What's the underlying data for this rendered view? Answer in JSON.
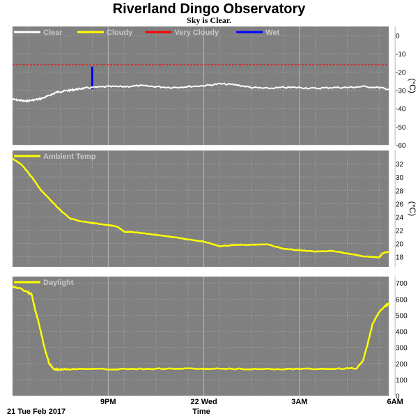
{
  "header": {
    "title": "Riverland Dingo Observatory",
    "subtitle": "Sky is Clear."
  },
  "x_axis": {
    "date_label": "21 Tue Feb 2017",
    "title": "Time",
    "ticks": [
      "9PM",
      "22 Wed",
      "3AM",
      "6AM"
    ]
  },
  "colors": {
    "panel_bg": "#808080",
    "grid": "#a8a8a8",
    "clear": "#ffffff",
    "cloudy": "#ffff00",
    "very_cloudy": "#ff0000",
    "wet": "#0000ff",
    "ambient": "#ffff00",
    "daylight": "#ffff00"
  },
  "chart_data": [
    {
      "type": "line",
      "id": "sky",
      "unit": "(°C)",
      "ylim": [
        -60,
        5
      ],
      "yticks": [
        0,
        -10,
        -20,
        -30,
        -40,
        -50,
        -60
      ],
      "legend": [
        "Clear",
        "Cloudy",
        "Very Cloudy",
        "Wet"
      ],
      "thresholds": {
        "very_cloudy": -16
      },
      "x": [
        0,
        0.2,
        0.4,
        0.6,
        0.8,
        1.0,
        1.2,
        1.4,
        1.6,
        1.8,
        2.0,
        2.2,
        2.5,
        3.0,
        3.5,
        4.0,
        4.5,
        5.0,
        5.5,
        6.0,
        6.5,
        7.0,
        7.5,
        8.0,
        8.5,
        9.0,
        9.5,
        10.0,
        10.5,
        11.0,
        11.5,
        11.8
      ],
      "series": [
        {
          "name": "Clear",
          "values": [
            -35,
            -35.5,
            -36,
            -35.5,
            -35,
            -34,
            -32.5,
            -31,
            -30.5,
            -30,
            -29.5,
            -29,
            -28.5,
            -28,
            -28,
            -27.5,
            -28,
            -28.5,
            -28,
            -27.5,
            -26.5,
            -27,
            -28.5,
            -29,
            -28.5,
            -28.5,
            -29,
            -28.5,
            -28.5,
            -28,
            -28.5,
            -29.5
          ]
        }
      ],
      "wet_events": [
        {
          "x": 2.5,
          "from": -29.5,
          "to": -17
        }
      ]
    },
    {
      "type": "line",
      "id": "ambient",
      "unit": "(°C)",
      "ylim": [
        16.5,
        34
      ],
      "yticks": [
        18,
        20,
        22,
        24,
        26,
        28,
        30,
        32
      ],
      "legend": [
        "Ambient Temp"
      ],
      "x": [
        0,
        0.3,
        0.6,
        0.9,
        1.2,
        1.5,
        1.8,
        2.1,
        2.5,
        3.0,
        3.3,
        3.5,
        4.0,
        4.5,
        5.0,
        5.5,
        6.0,
        6.5,
        7.0,
        7.5,
        8.0,
        8.5,
        9.0,
        9.5,
        10.0,
        10.5,
        11.0,
        11.5,
        11.8
      ],
      "series": [
        {
          "name": "Ambient Temp",
          "values": [
            32.8,
            31.8,
            30,
            28,
            26.5,
            25,
            23.8,
            23.4,
            23.1,
            22.8,
            22.5,
            21.8,
            21.6,
            21.3,
            21.0,
            20.6,
            20.3,
            19.6,
            19.8,
            19.8,
            19.9,
            19.2,
            19.0,
            18.8,
            18.9,
            18.5,
            18.1,
            17.9,
            18.1
          ],
          "values_tail": [
            18.5,
            18.8
          ]
        }
      ]
    },
    {
      "type": "line",
      "id": "daylight",
      "unit": "",
      "ylim": [
        0,
        740
      ],
      "yticks": [
        0,
        100,
        200,
        300,
        400,
        500,
        600,
        700
      ],
      "legend": [
        "Daylight"
      ],
      "x": [
        0,
        0.25,
        0.5,
        0.6,
        0.7,
        0.8,
        1.0,
        1.15,
        1.3,
        1.45,
        1.6,
        2.0,
        3.0,
        4.0,
        5.0,
        6.0,
        7.0,
        8.0,
        9.0,
        10.0,
        10.8,
        11.0,
        11.15,
        11.3,
        11.5,
        11.7,
        11.8
      ],
      "series": [
        {
          "name": "Daylight",
          "values": [
            680,
            665,
            640,
            630,
            540,
            470,
            300,
            200,
            165,
            163,
            165,
            166,
            165,
            167,
            168,
            167,
            166,
            166,
            167,
            167,
            170,
            220,
            330,
            450,
            520,
            560,
            570
          ]
        }
      ]
    }
  ]
}
